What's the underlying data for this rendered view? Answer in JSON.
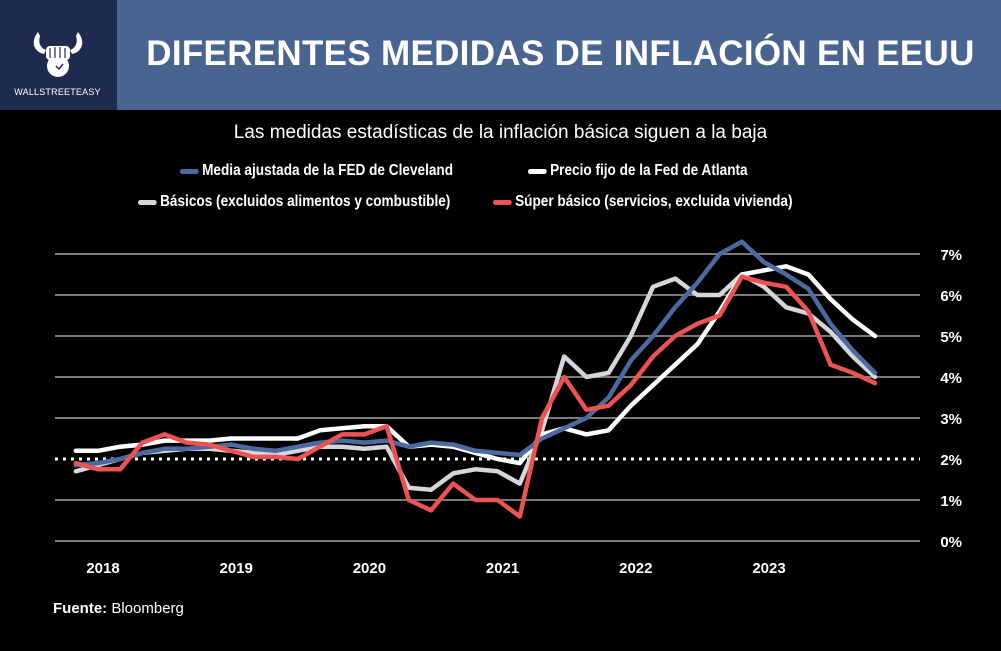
{
  "header": {
    "title": "DIFERENTES MEDIDAS DE INFLACIÓN EN EEUU",
    "logo_text": "WALLSTREETEASY",
    "colors": {
      "banner": "#4a6491",
      "banner_dark": "#1f2a4f"
    }
  },
  "footer": {
    "source_label": "Fuente:",
    "source": "Bloomberg"
  },
  "chart_data": {
    "type": "line",
    "title": "Las medidas estadísticas de la inflación básica siguen a la baja",
    "xlabel": "",
    "ylabel": "",
    "ylim": [
      0,
      7
    ],
    "yticks": [
      "0%",
      "1%",
      "2%",
      "3%",
      "4%",
      "5%",
      "6%",
      "7%"
    ],
    "xticks": [
      "2018",
      "2019",
      "2020",
      "2021",
      "2022",
      "2023"
    ],
    "grid": true,
    "reference_line": {
      "value": 2,
      "style": "dotted"
    },
    "legend_position": "top",
    "x": [
      "2017-11",
      "2018-01",
      "2018-03",
      "2018-05",
      "2018-07",
      "2018-09",
      "2018-11",
      "2019-01",
      "2019-03",
      "2019-05",
      "2019-07",
      "2019-09",
      "2019-11",
      "2020-01",
      "2020-03",
      "2020-05",
      "2020-07",
      "2020-09",
      "2020-11",
      "2021-01",
      "2021-03",
      "2021-05",
      "2021-07",
      "2021-09",
      "2021-11",
      "2022-01",
      "2022-03",
      "2022-05",
      "2022-07",
      "2022-09",
      "2022-11",
      "2023-01",
      "2023-03",
      "2023-05",
      "2023-07",
      "2023-09",
      "2023-11"
    ],
    "series": [
      {
        "name": "Media ajustada de la FED de Cleveland",
        "color": "#4a6aa0",
        "values": [
          1.85,
          1.9,
          2.0,
          2.15,
          2.25,
          2.25,
          2.3,
          2.35,
          2.25,
          2.2,
          2.3,
          2.4,
          2.45,
          2.4,
          2.45,
          2.3,
          2.4,
          2.35,
          2.2,
          2.15,
          2.1,
          2.5,
          2.75,
          3.0,
          3.5,
          4.4,
          5.0,
          5.7,
          6.3,
          7.0,
          7.3,
          6.8,
          6.5,
          6.15,
          5.3,
          4.65,
          4.1
        ]
      },
      {
        "name": "Precio fijo de la Fed de Atlanta",
        "color": "#ffffff",
        "values": [
          2.2,
          2.2,
          2.3,
          2.35,
          2.45,
          2.45,
          2.45,
          2.5,
          2.5,
          2.5,
          2.5,
          2.7,
          2.75,
          2.8,
          2.8,
          2.3,
          2.35,
          2.3,
          2.15,
          2.0,
          1.9,
          2.6,
          2.75,
          2.6,
          2.7,
          3.3,
          3.8,
          4.3,
          4.8,
          5.6,
          6.5,
          6.6,
          6.7,
          6.5,
          5.9,
          5.4,
          5.0
        ]
      },
      {
        "name": "Básicos (excluidos alimentos y combustible)",
        "color": "#d4d6da",
        "values": [
          1.7,
          1.85,
          2.0,
          2.15,
          2.2,
          2.25,
          2.25,
          2.2,
          2.15,
          2.1,
          2.2,
          2.3,
          2.3,
          2.25,
          2.3,
          1.3,
          1.25,
          1.65,
          1.75,
          1.7,
          1.4,
          2.7,
          4.5,
          4.0,
          4.1,
          5.0,
          6.2,
          6.4,
          6.0,
          6.0,
          6.5,
          6.2,
          5.7,
          5.55,
          5.1,
          4.5,
          4.0
        ]
      },
      {
        "name": "Súper básico (servicios, excluida vivienda)",
        "color": "#ec5352",
        "values": [
          1.9,
          1.75,
          1.75,
          2.4,
          2.6,
          2.4,
          2.35,
          2.2,
          2.05,
          2.05,
          2.0,
          2.3,
          2.6,
          2.6,
          2.8,
          1.0,
          0.75,
          1.4,
          1.0,
          1.0,
          0.6,
          3.0,
          4.0,
          3.2,
          3.3,
          3.8,
          4.5,
          5.0,
          5.3,
          5.5,
          6.45,
          6.3,
          6.2,
          5.6,
          4.3,
          4.1,
          3.85
        ]
      }
    ]
  }
}
